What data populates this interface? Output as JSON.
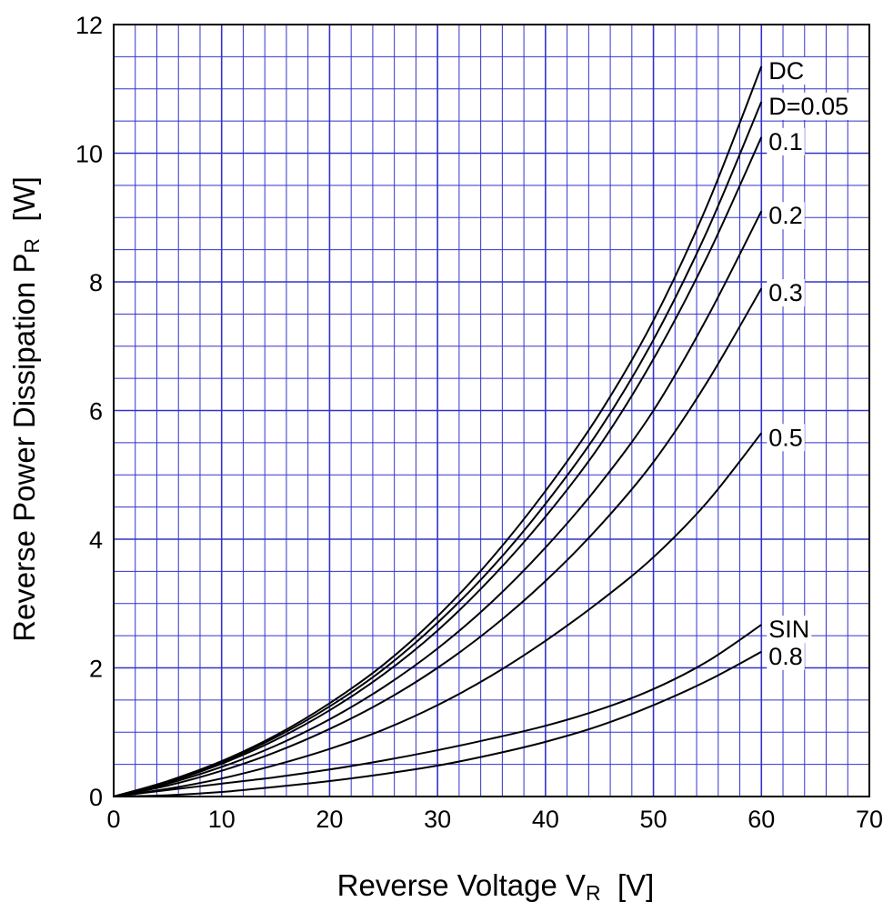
{
  "chart_data": {
    "type": "line",
    "title": "",
    "xlabel": {
      "text": "Reverse Voltage  V",
      "subscript": "R",
      "unit": "  [V]"
    },
    "ylabel": {
      "text": "Reverse Power Dissipation  P",
      "subscript": "R",
      "unit": "  [W]"
    },
    "xlim": [
      0,
      70
    ],
    "ylim": [
      0,
      12
    ],
    "x_ticks": [
      0,
      10,
      20,
      30,
      40,
      50,
      60,
      70
    ],
    "y_ticks": [
      0,
      2,
      4,
      6,
      8,
      10,
      12
    ],
    "x_minor_step": 2,
    "y_minor_step": 0.5,
    "grid": true,
    "grid_color": "#3333cc",
    "line_color": "#000000",
    "background": "#ffffff",
    "series": [
      {
        "name": "DC",
        "x": [
          0,
          5,
          10,
          15,
          20,
          25,
          30,
          35,
          40,
          45,
          50,
          55,
          60
        ],
        "y": [
          0,
          0.24,
          0.55,
          0.95,
          1.45,
          2.05,
          2.8,
          3.7,
          4.75,
          5.95,
          7.4,
          9.2,
          11.35
        ]
      },
      {
        "name": "D=0.05",
        "x": [
          0,
          5,
          10,
          15,
          20,
          25,
          30,
          35,
          40,
          45,
          50,
          55,
          60
        ],
        "y": [
          0,
          0.23,
          0.53,
          0.92,
          1.4,
          1.98,
          2.7,
          3.55,
          4.55,
          5.7,
          7.1,
          8.8,
          10.8
        ]
      },
      {
        "name": "0.1",
        "x": [
          0,
          5,
          10,
          15,
          20,
          25,
          30,
          35,
          40,
          45,
          50,
          55,
          60
        ],
        "y": [
          0,
          0.22,
          0.51,
          0.88,
          1.34,
          1.9,
          2.58,
          3.4,
          4.35,
          5.45,
          6.8,
          8.4,
          10.25
        ]
      },
      {
        "name": "0.2",
        "x": [
          0,
          5,
          10,
          15,
          20,
          25,
          30,
          35,
          40,
          45,
          50,
          55,
          60
        ],
        "y": [
          0,
          0.2,
          0.46,
          0.79,
          1.2,
          1.7,
          2.3,
          3.02,
          3.87,
          4.85,
          6.0,
          7.45,
          9.1
        ]
      },
      {
        "name": "0.3",
        "x": [
          0,
          5,
          10,
          15,
          20,
          25,
          30,
          35,
          40,
          45,
          50,
          55,
          60
        ],
        "y": [
          0,
          0.17,
          0.4,
          0.69,
          1.05,
          1.48,
          2.0,
          2.62,
          3.35,
          4.2,
          5.2,
          6.45,
          7.9
        ]
      },
      {
        "name": "0.5",
        "x": [
          0,
          5,
          10,
          15,
          20,
          25,
          30,
          35,
          40,
          45,
          50,
          55,
          60
        ],
        "y": [
          0,
          0.12,
          0.28,
          0.49,
          0.74,
          1.04,
          1.42,
          1.88,
          2.42,
          3.03,
          3.72,
          4.58,
          5.65
        ]
      },
      {
        "name": "SIN",
        "x": [
          0,
          5,
          10,
          15,
          20,
          25,
          30,
          35,
          40,
          45,
          50,
          55,
          60
        ],
        "y": [
          0,
          0.1,
          0.2,
          0.3,
          0.42,
          0.56,
          0.72,
          0.9,
          1.1,
          1.35,
          1.67,
          2.1,
          2.67
        ]
      },
      {
        "name": "0.8",
        "x": [
          0,
          5,
          10,
          15,
          20,
          25,
          30,
          35,
          40,
          45,
          50,
          55,
          60
        ],
        "y": [
          0,
          0.02,
          0.07,
          0.15,
          0.24,
          0.35,
          0.48,
          0.65,
          0.85,
          1.1,
          1.42,
          1.8,
          2.25
        ]
      }
    ]
  }
}
